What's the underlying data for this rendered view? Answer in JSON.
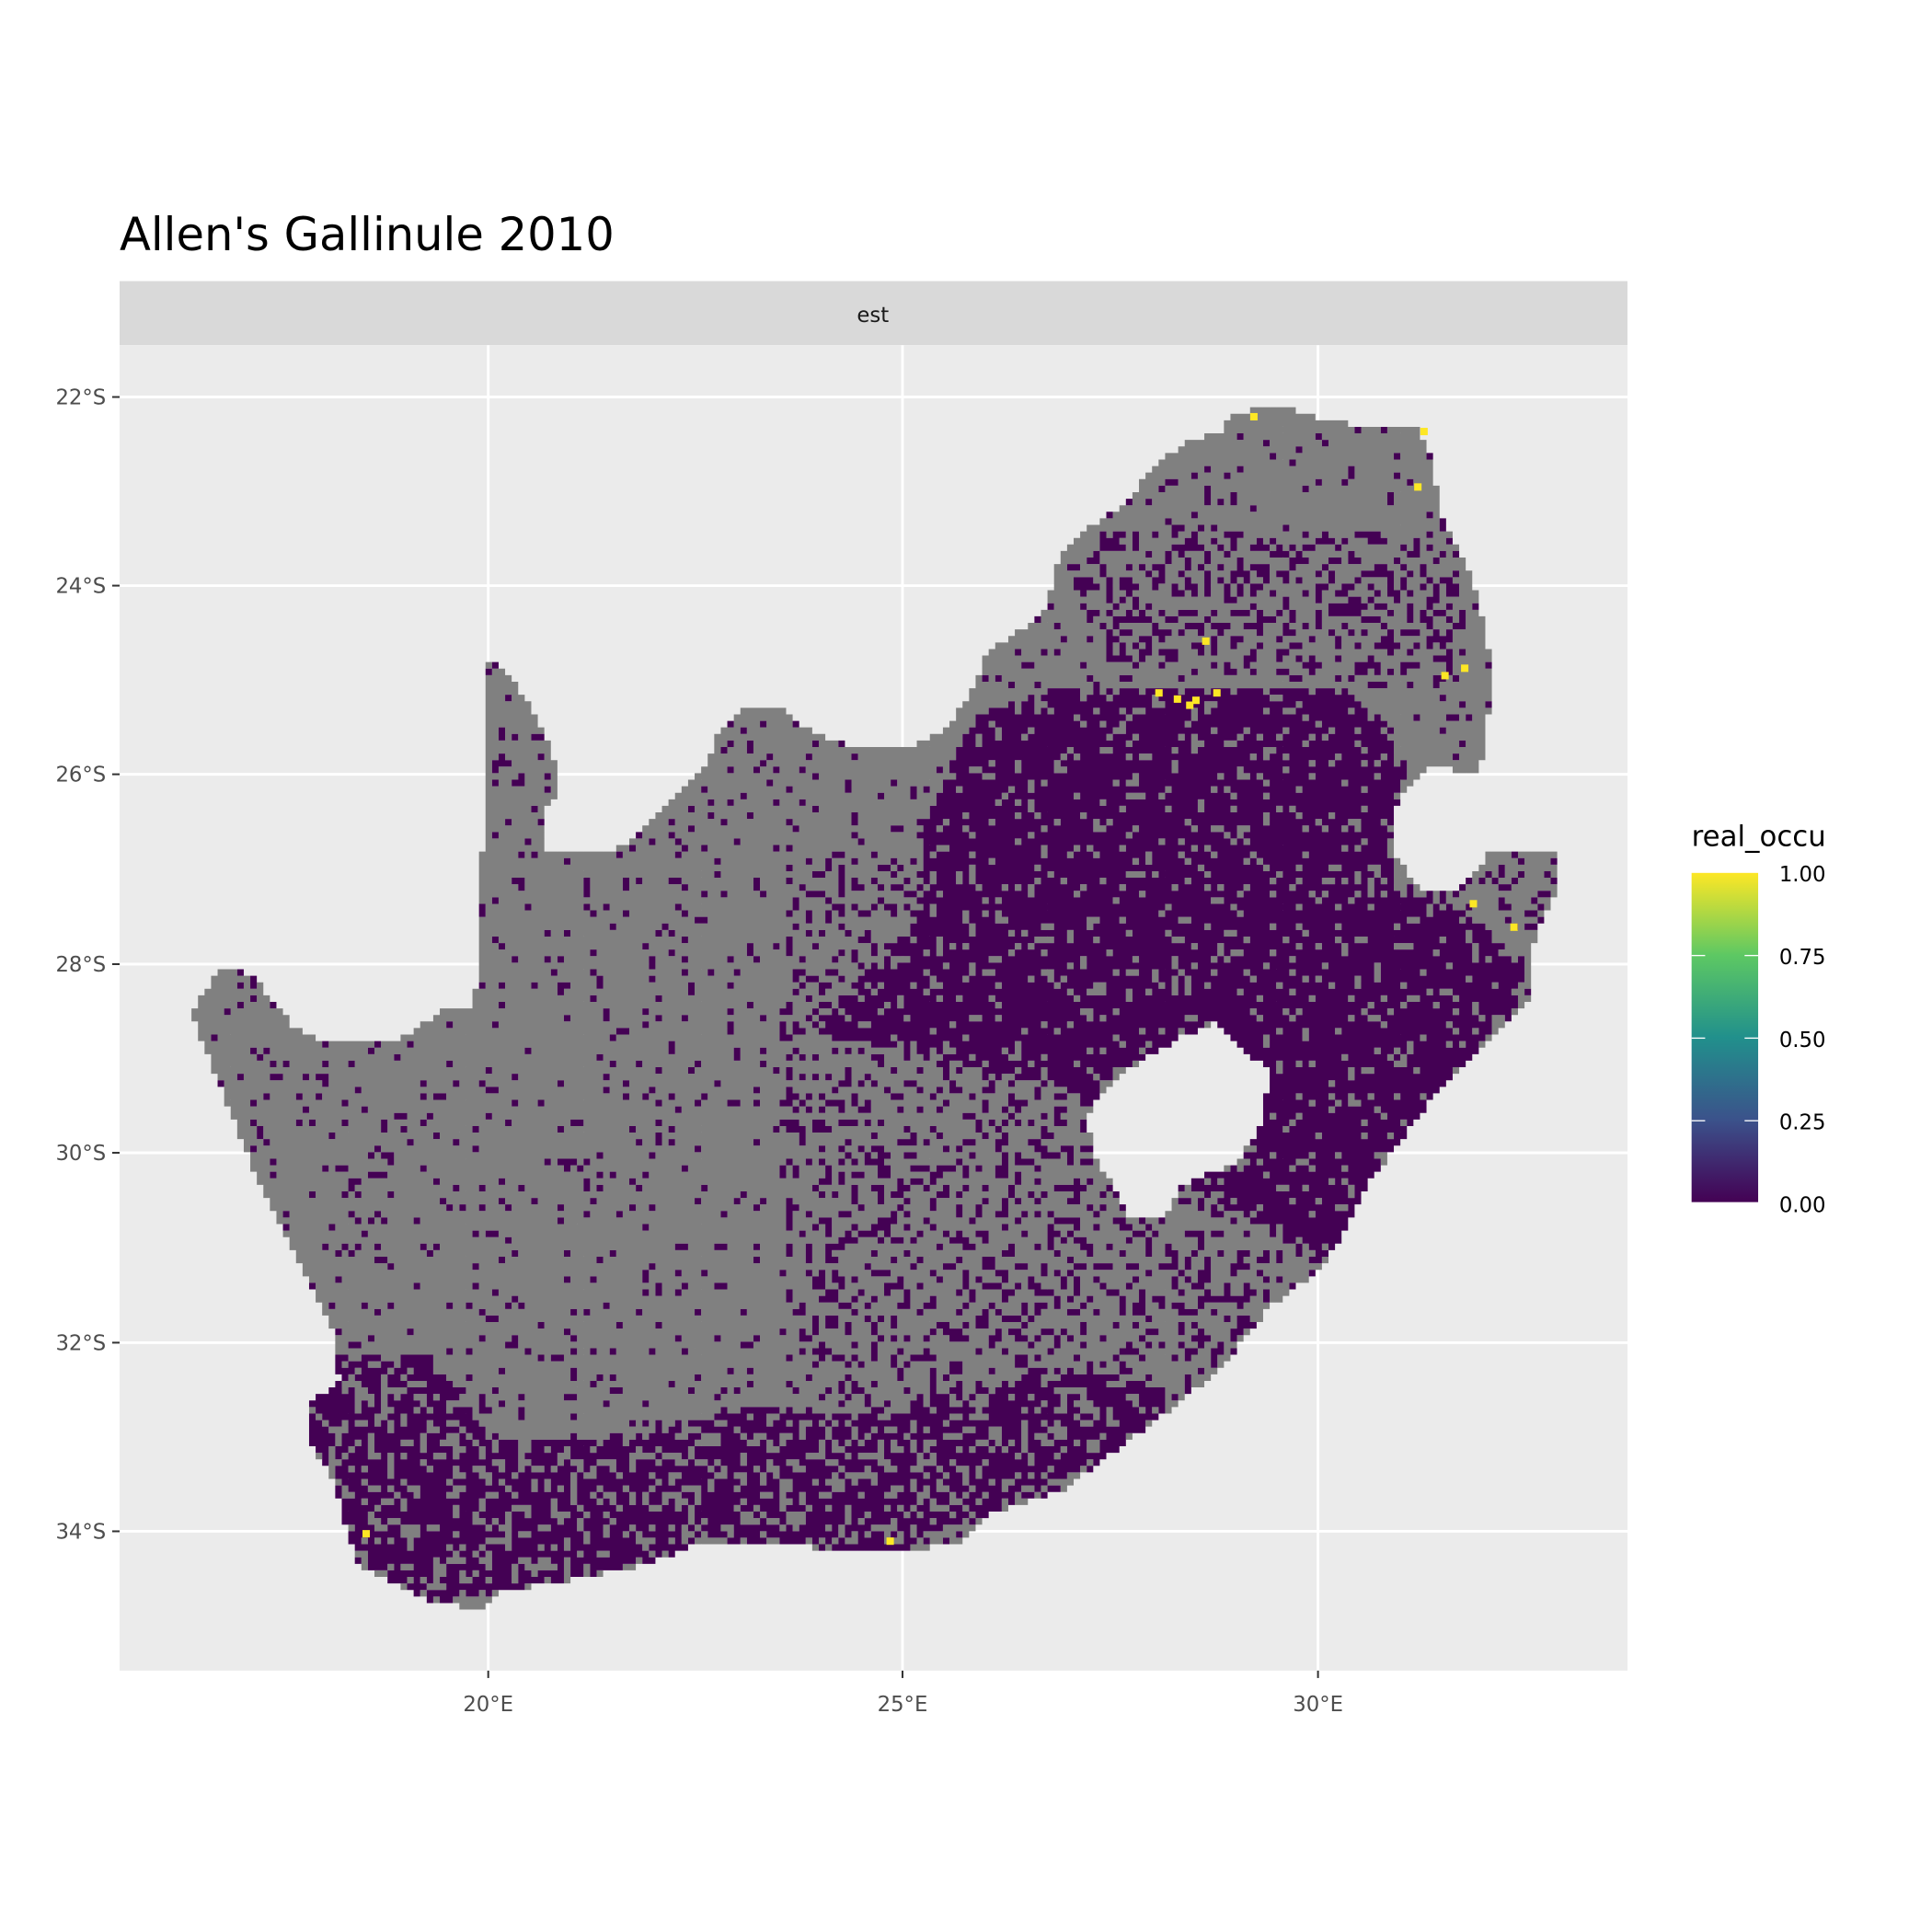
{
  "chart_data": {
    "type": "heatmap",
    "title": "Allen's Gallinule 2010",
    "facet_label": "est",
    "x_ticks": [
      "20°E",
      "25°E",
      "30°E"
    ],
    "y_ticks": [
      "22°S",
      "24°S",
      "26°S",
      "28°S",
      "30°S",
      "32°S",
      "34°S"
    ],
    "legend": {
      "title": "real_occu",
      "labels": [
        "1.00",
        "0.75",
        "0.50",
        "0.25",
        "0.00"
      ],
      "range": [
        0,
        1
      ],
      "colormap": "viridis",
      "placement": "right"
    },
    "grid": true,
    "colors": {
      "na_cells": "#808080",
      "low": "#440154",
      "high": "#FDE725",
      "panel": "#EBEBEB"
    }
  }
}
